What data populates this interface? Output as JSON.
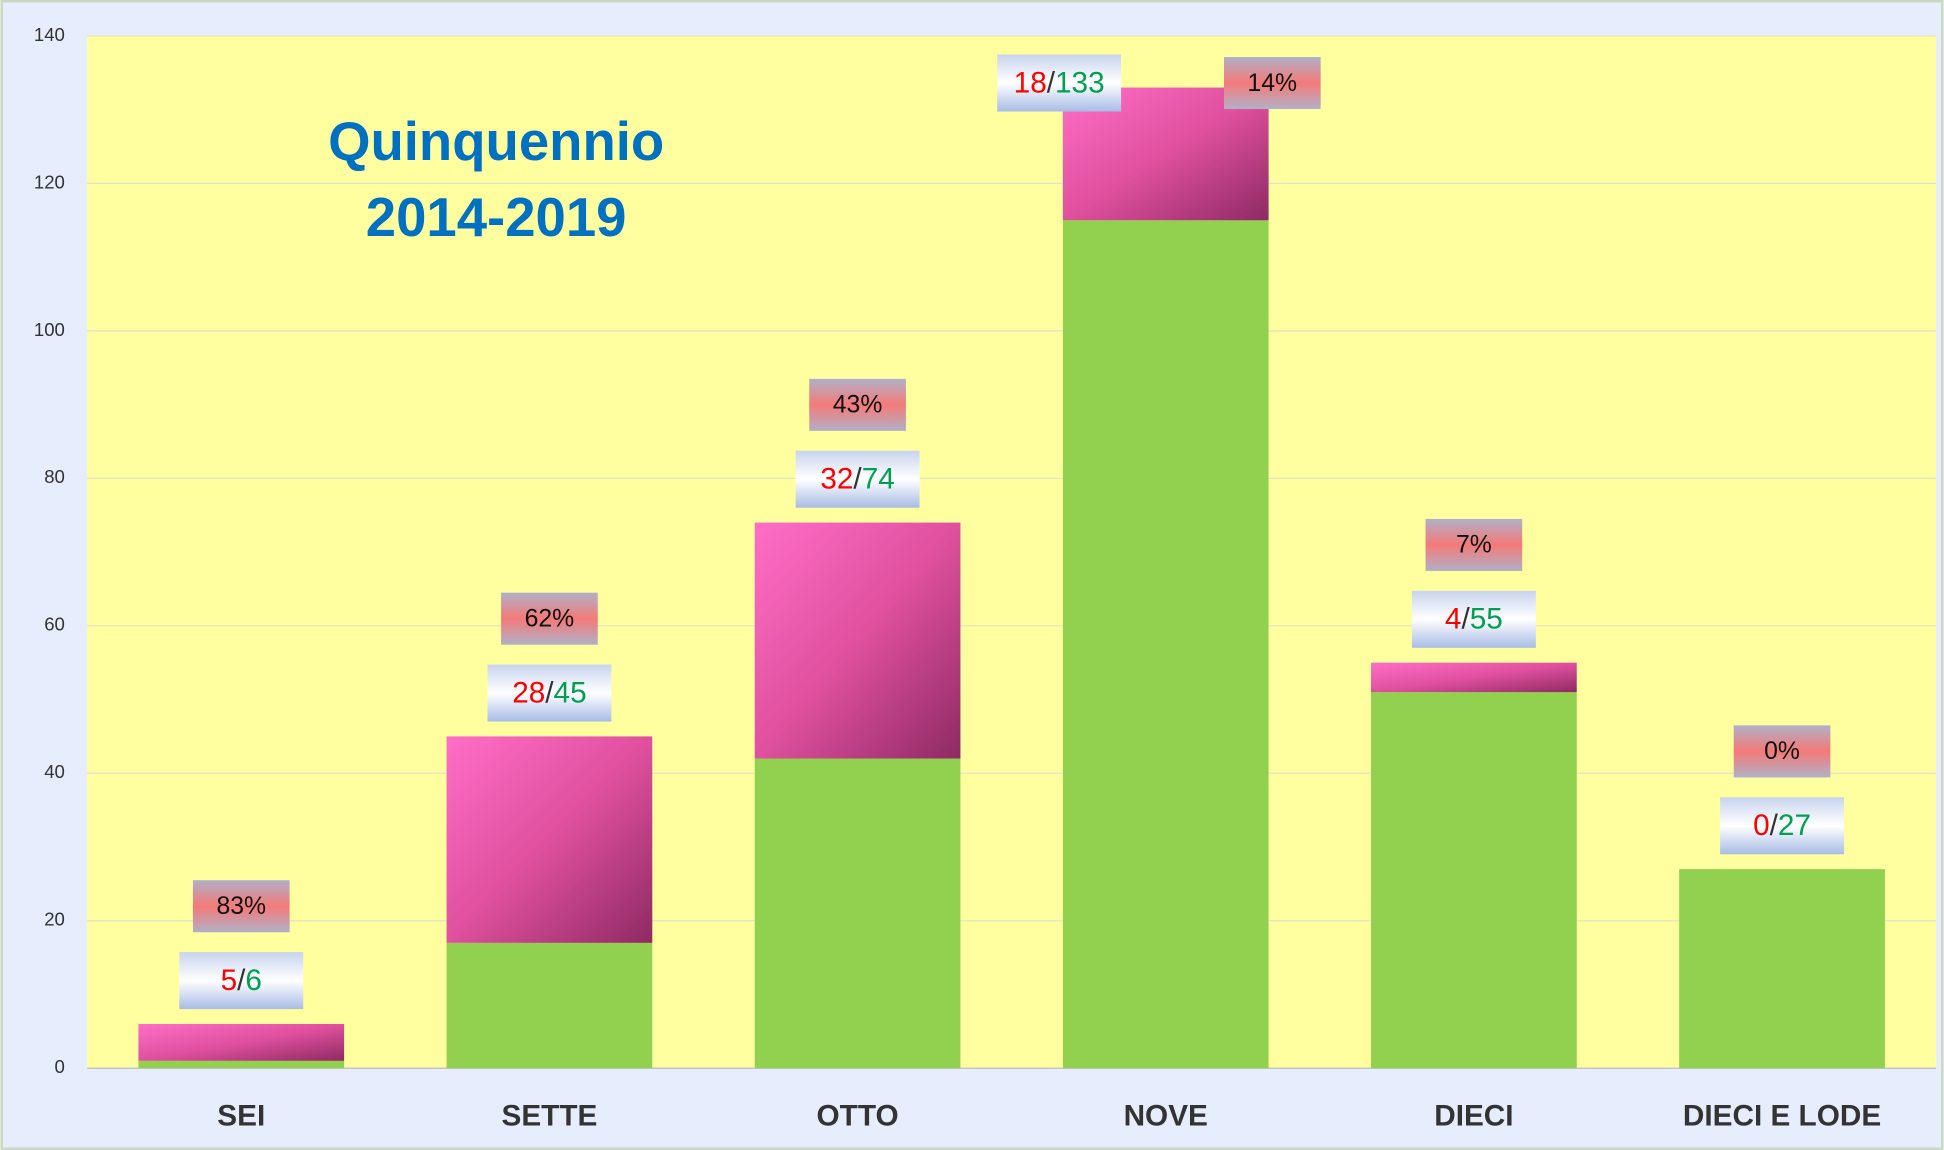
{
  "chart_data": {
    "type": "stacked_bar",
    "title_lines": [
      "Quinquennio",
      "2014-2019"
    ],
    "categories": [
      "SEI",
      "SETTE",
      "OTTO",
      "NOVE",
      "DIECI",
      "DIECI E LODE"
    ],
    "series": [
      {
        "color": "#92d050",
        "values": [
          1,
          17,
          42,
          115,
          51,
          27
        ]
      },
      {
        "color": "#ff6ec7",
        "values": [
          5,
          28,
          32,
          18,
          4,
          0
        ]
      }
    ],
    "totals": [
      6,
      45,
      74,
      133,
      55,
      27
    ],
    "separator": "/",
    "percent_labels": [
      "83%",
      "62%",
      "43%",
      "14%",
      "7%",
      "0%"
    ],
    "ylim": [
      0,
      140
    ],
    "yticks": [
      0,
      20,
      40,
      60,
      80,
      100,
      120,
      140
    ],
    "grid": true
  }
}
